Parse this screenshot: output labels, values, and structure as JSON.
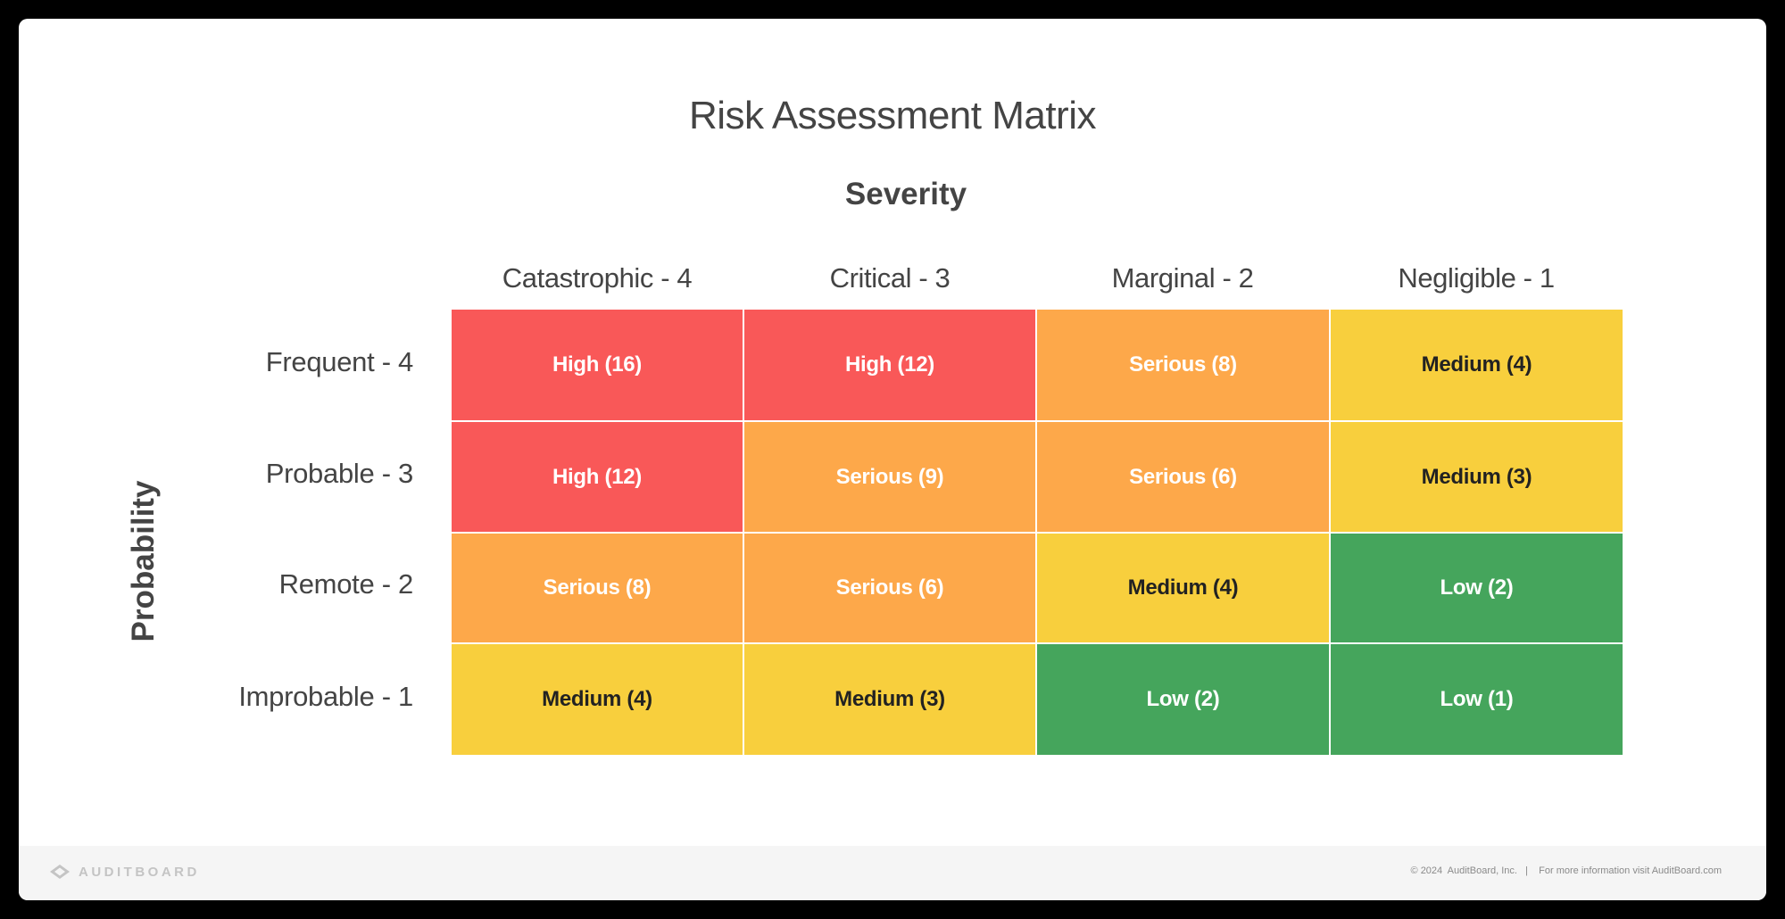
{
  "title": "Risk Assessment Matrix",
  "x_axis_label": "Severity",
  "y_axis_label": "Probability",
  "columns": [
    {
      "label": "Catastrophic - 4"
    },
    {
      "label": "Critical - 3"
    },
    {
      "label": "Marginal - 2"
    },
    {
      "label": "Negligible - 1"
    }
  ],
  "rows": [
    {
      "label": "Frequent - 4"
    },
    {
      "label": "Probable - 3"
    },
    {
      "label": "Remote - 2"
    },
    {
      "label": "Improbable - 1"
    }
  ],
  "colors": {
    "high": "#f95858",
    "serious": "#fda84a",
    "medium": "#f8cf3d",
    "low": "#45a55c"
  },
  "cells": [
    [
      {
        "label": "High (16)",
        "level": "high"
      },
      {
        "label": "High (12)",
        "level": "high"
      },
      {
        "label": "Serious (8)",
        "level": "serious"
      },
      {
        "label": "Medium (4)",
        "level": "medium"
      }
    ],
    [
      {
        "label": "High (12)",
        "level": "high"
      },
      {
        "label": "Serious (9)",
        "level": "serious"
      },
      {
        "label": "Serious (6)",
        "level": "serious"
      },
      {
        "label": "Medium (3)",
        "level": "medium"
      }
    ],
    [
      {
        "label": "Serious (8)",
        "level": "serious"
      },
      {
        "label": "Serious (6)",
        "level": "serious"
      },
      {
        "label": "Medium (4)",
        "level": "medium"
      },
      {
        "label": "Low (2)",
        "level": "low"
      }
    ],
    [
      {
        "label": "Medium (4)",
        "level": "medium"
      },
      {
        "label": "Medium (3)",
        "level": "medium"
      },
      {
        "label": "Low (2)",
        "level": "low"
      },
      {
        "label": "Low (1)",
        "level": "low"
      }
    ]
  ],
  "footer": {
    "logo_text": "AUDITBOARD",
    "copyright": "© 2024  AuditBoard, Inc.   |    For more information visit AuditBoard.com"
  },
  "chart_data": {
    "type": "heatmap",
    "title": "Risk Assessment Matrix",
    "xlabel": "Severity",
    "ylabel": "Probability",
    "x": [
      "Catastrophic - 4",
      "Critical - 3",
      "Marginal - 2",
      "Negligible - 1"
    ],
    "y": [
      "Frequent - 4",
      "Probable - 3",
      "Remote - 2",
      "Improbable - 1"
    ],
    "values": [
      [
        16,
        12,
        8,
        4
      ],
      [
        12,
        9,
        6,
        3
      ],
      [
        8,
        6,
        4,
        2
      ],
      [
        4,
        3,
        2,
        1
      ]
    ],
    "categories_matrix": [
      [
        "High",
        "High",
        "Serious",
        "Medium"
      ],
      [
        "High",
        "Serious",
        "Serious",
        "Medium"
      ],
      [
        "Serious",
        "Serious",
        "Medium",
        "Low"
      ],
      [
        "Medium",
        "Medium",
        "Low",
        "Low"
      ]
    ],
    "legend": {
      "High": "#f95858",
      "Serious": "#fda84a",
      "Medium": "#f8cf3d",
      "Low": "#45a55c"
    },
    "grid": false
  }
}
